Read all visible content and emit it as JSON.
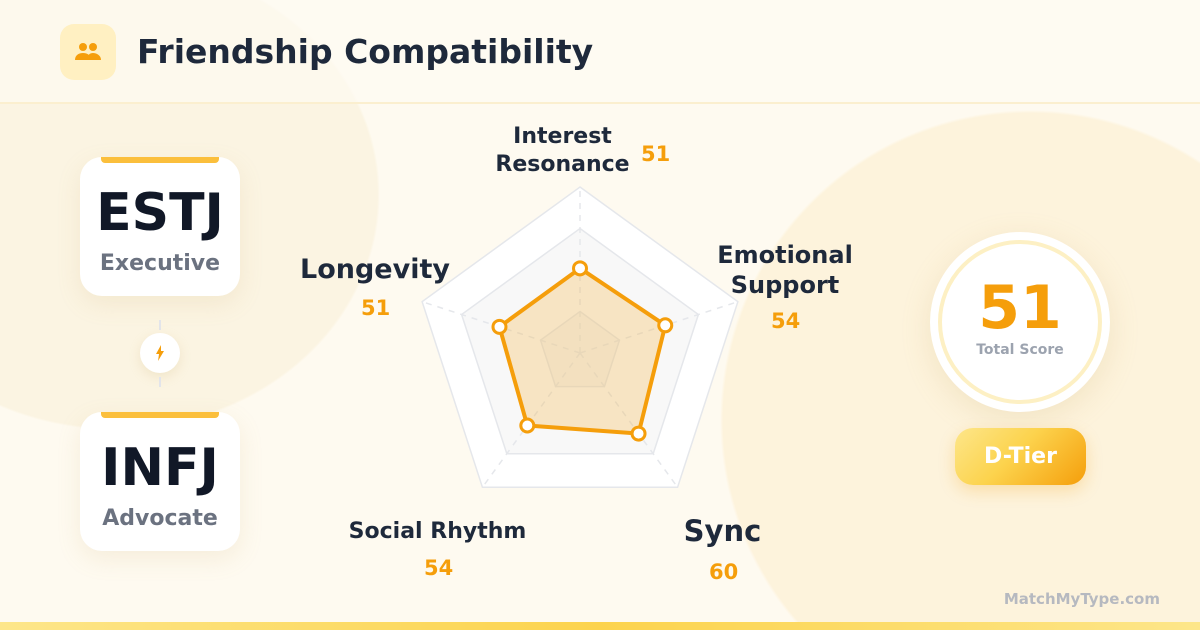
{
  "header": {
    "title": "Friendship Compatibility",
    "icon": "users-icon"
  },
  "types": [
    {
      "code": "ESTJ",
      "name": "Executive"
    },
    {
      "code": "INFJ",
      "name": "Advocate"
    }
  ],
  "connector_icon": "lightning-icon",
  "chart_data": {
    "type": "radar",
    "categories": [
      "Interest Resonance",
      "Emotional Support",
      "Sync",
      "Social Rhythm",
      "Longevity"
    ],
    "values": [
      51,
      54,
      60,
      54,
      51
    ],
    "range": [
      0,
      100
    ],
    "grid_levels": [
      25,
      75,
      100
    ],
    "color": "#f59e0b"
  },
  "labels": {
    "interest": [
      "Interest",
      "Resonance"
    ],
    "emotional": [
      "Emotional",
      "Support"
    ],
    "sync": "Sync",
    "social": "Social Rhythm",
    "longevity": "Longevity"
  },
  "values_text": [
    "51",
    "54",
    "60",
    "54",
    "51"
  ],
  "score": {
    "value": "51",
    "caption": "Total Score",
    "tier": "D-Tier"
  },
  "footer": "MatchMyType.com",
  "colors": {
    "accent": "#f59e0b",
    "text": "#1e293b"
  }
}
